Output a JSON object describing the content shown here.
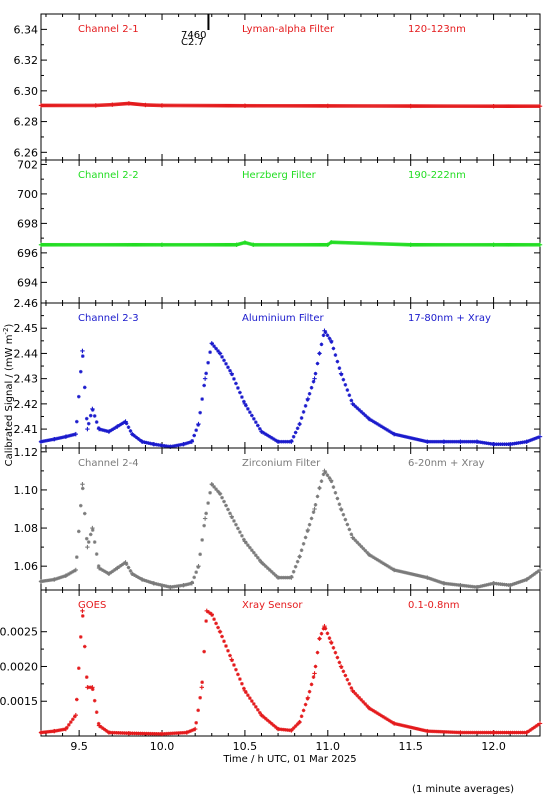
{
  "ylabel": "Calibrated Signal / (mW m",
  "ylabel_sup": "-2",
  "ylabel_end": ")",
  "xlabel": "Time / h UTC, 01 Mar 2025",
  "footnote": "(1 minute averages)",
  "marker": {
    "label1": "7460",
    "label2": "C2.7",
    "x": 10.28
  },
  "x_axis": {
    "xlim": [
      9.27,
      12.28
    ],
    "ticks": [
      9.5,
      10.0,
      10.5,
      11.0,
      11.5,
      12.0
    ],
    "tick_labels": [
      "9.5",
      "10.0",
      "10.5",
      "11.0",
      "11.5",
      "12.0"
    ]
  },
  "colors": {
    "red": "#e41a1c",
    "green": "#22dd22",
    "blue": "#1a1acc",
    "gray": "#7a7a7a"
  },
  "chart_data": [
    {
      "type": "scatter",
      "name": "Channel 2-1",
      "filter": "Lyman-alpha Filter",
      "band": "120-123nm",
      "color": "#e41a1c",
      "ylim": [
        6.255,
        6.35
      ],
      "yticks": [
        6.26,
        6.28,
        6.3,
        6.32,
        6.34
      ],
      "ytick_labels": [
        "6.26",
        "6.28",
        "6.30",
        "6.32",
        "6.34"
      ],
      "x": [
        9.27,
        9.6,
        9.7,
        9.8,
        9.9,
        10.0,
        10.5,
        11.0,
        11.5,
        12.0,
        12.28
      ],
      "y": [
        6.2905,
        6.2905,
        6.291,
        6.2918,
        6.2908,
        6.2905,
        6.2903,
        6.2902,
        6.2901,
        6.29,
        6.29
      ]
    },
    {
      "type": "scatter",
      "name": "Channel 2-2",
      "filter": "Herzberg Filter",
      "band": "190-222nm",
      "color": "#22dd22",
      "ylim": [
        692.6,
        702.3
      ],
      "yticks": [
        694,
        696,
        698,
        700,
        702
      ],
      "ytick_labels": [
        "694",
        "696",
        "698",
        "700",
        "702"
      ],
      "x": [
        9.27,
        10.0,
        10.45,
        10.5,
        10.55,
        11.0,
        11.02,
        11.5,
        12.0,
        12.28
      ],
      "y": [
        696.55,
        696.55,
        696.55,
        696.7,
        696.55,
        696.55,
        696.72,
        696.55,
        696.55,
        696.55
      ]
    },
    {
      "type": "scatter",
      "name": "Channel 2-3",
      "filter": "Aluminium Filter",
      "band": "17-80nm + Xray",
      "color": "#1a1acc",
      "ylim": [
        2.4025,
        2.46
      ],
      "yticks": [
        2.41,
        2.42,
        2.43,
        2.44,
        2.45,
        2.46
      ],
      "ytick_labels": [
        "2.41",
        "2.42",
        "2.43",
        "2.44",
        "2.45",
        "2.46"
      ],
      "x": [
        9.27,
        9.35,
        9.42,
        9.48,
        9.52,
        9.55,
        9.58,
        9.62,
        9.68,
        9.73,
        9.78,
        9.82,
        9.88,
        9.95,
        10.05,
        10.13,
        10.18,
        10.22,
        10.26,
        10.3,
        10.35,
        10.42,
        10.5,
        10.6,
        10.7,
        10.78,
        10.83,
        10.88,
        10.92,
        10.95,
        10.98,
        11.02,
        11.08,
        11.15,
        11.25,
        11.4,
        11.6,
        11.7,
        11.8,
        11.9,
        12.0,
        12.1,
        12.2,
        12.28
      ],
      "y": [
        2.405,
        2.406,
        2.407,
        2.408,
        2.441,
        2.41,
        2.418,
        2.41,
        2.409,
        2.411,
        2.413,
        2.408,
        2.405,
        2.404,
        2.403,
        2.404,
        2.405,
        2.412,
        2.43,
        2.444,
        2.44,
        2.432,
        2.42,
        2.409,
        2.405,
        2.405,
        2.412,
        2.422,
        2.43,
        2.44,
        2.449,
        2.445,
        2.432,
        2.42,
        2.414,
        2.408,
        2.405,
        2.405,
        2.405,
        2.405,
        2.404,
        2.404,
        2.405,
        2.407
      ]
    },
    {
      "type": "scatter",
      "name": "Channel 2-4",
      "filter": "Zirconium Filter",
      "band": "6-20nm + Xray",
      "color": "#7a7a7a",
      "ylim": [
        1.0475,
        1.122
      ],
      "yticks": [
        1.06,
        1.08,
        1.1,
        1.12
      ],
      "ytick_labels": [
        "1.06",
        "1.08",
        "1.10",
        "1.12"
      ],
      "x": [
        9.27,
        9.35,
        9.42,
        9.48,
        9.52,
        9.55,
        9.58,
        9.62,
        9.68,
        9.73,
        9.78,
        9.82,
        9.88,
        9.95,
        10.05,
        10.13,
        10.18,
        10.22,
        10.26,
        10.3,
        10.35,
        10.42,
        10.5,
        10.6,
        10.7,
        10.78,
        10.83,
        10.88,
        10.92,
        10.95,
        10.98,
        11.02,
        11.08,
        11.15,
        11.25,
        11.4,
        11.6,
        11.7,
        11.8,
        11.9,
        12.0,
        12.1,
        12.2,
        12.28
      ],
      "y": [
        1.052,
        1.053,
        1.055,
        1.058,
        1.103,
        1.07,
        1.08,
        1.059,
        1.056,
        1.059,
        1.062,
        1.056,
        1.053,
        1.051,
        1.049,
        1.05,
        1.051,
        1.06,
        1.085,
        1.103,
        1.098,
        1.086,
        1.073,
        1.062,
        1.054,
        1.054,
        1.065,
        1.079,
        1.09,
        1.101,
        1.11,
        1.105,
        1.09,
        1.075,
        1.066,
        1.058,
        1.054,
        1.051,
        1.05,
        1.049,
        1.051,
        1.05,
        1.053,
        1.058
      ]
    },
    {
      "type": "scatter",
      "name": "GOES",
      "filter": "Xray Sensor",
      "band": "0.1-0.8nm",
      "color": "#e41a1c",
      "ylim": [
        0.001,
        0.0031
      ],
      "yticks": [
        0.0015,
        0.002,
        0.0025
      ],
      "ytick_labels": [
        "0.0015",
        "0.0020",
        "0.0025"
      ],
      "x": [
        9.27,
        9.35,
        9.42,
        9.48,
        9.52,
        9.55,
        9.58,
        9.62,
        9.68,
        9.8,
        10.0,
        10.15,
        10.2,
        10.24,
        10.27,
        10.3,
        10.35,
        10.42,
        10.5,
        10.6,
        10.7,
        10.78,
        10.83,
        10.88,
        10.92,
        10.95,
        10.98,
        11.02,
        11.08,
        11.15,
        11.25,
        11.4,
        11.6,
        11.8,
        12.0,
        12.2,
        12.28
      ],
      "y": [
        0.00105,
        0.00107,
        0.0011,
        0.0013,
        0.0028,
        0.0017,
        0.0017,
        0.00115,
        0.00105,
        0.00104,
        0.00103,
        0.00105,
        0.0011,
        0.0017,
        0.0028,
        0.00275,
        0.0025,
        0.0021,
        0.00165,
        0.0013,
        0.0011,
        0.00108,
        0.0012,
        0.00155,
        0.0019,
        0.0024,
        0.00258,
        0.00235,
        0.002,
        0.00165,
        0.0014,
        0.00118,
        0.00107,
        0.00105,
        0.00105,
        0.00105,
        0.00118
      ]
    }
  ]
}
